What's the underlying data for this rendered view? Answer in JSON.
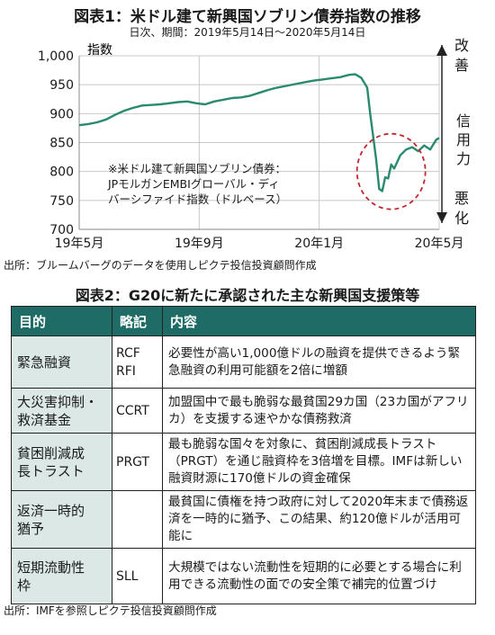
{
  "figure1": {
    "title": "図表1：米ドル建て新興国ソブリン債券指数の推移",
    "subtitle": "日次、期間：2019年5月14日～2020年5月14日",
    "y_unit_label": "指数",
    "note": "※米ドル建て新興国ソブリン債券：\nJPモルガンEMBIグローバル・ディ\nバーシファイド指数（ドルベース）",
    "arrow_top_label": "改善",
    "arrow_middle_label": "信用力",
    "arrow_bottom_label": "悪化",
    "source": "出所：ブルームバーグのデータを使用しピクテ投信投資顧問作成"
  },
  "chart_data": {
    "type": "line",
    "title": "図表1：米ドル建て新興国ソブリン債券指数の推移",
    "subtitle": "日次、期間：2019年5月14日～2020年5月14日",
    "xlabel": "",
    "ylabel": "指数",
    "ylim": [
      700,
      1000
    ],
    "yticks": [
      700,
      750,
      800,
      850,
      900,
      950,
      1000
    ],
    "ytick_labels": [
      "700",
      "750",
      "800",
      "850",
      "900",
      "950",
      "1,000"
    ],
    "xlim": [
      0,
      12
    ],
    "xticks": [
      0,
      4,
      8,
      12
    ],
    "xtick_labels": [
      "19年5月",
      "19年9月",
      "20年1月",
      "20年5月"
    ],
    "grid": true,
    "series_color": "#2a8a6f",
    "highlight_color": "#c0282d",
    "highlight": {
      "x": 10.4,
      "y": 800
    },
    "x": [
      0,
      0.3,
      0.6,
      0.9,
      1.2,
      1.5,
      1.8,
      2.1,
      2.4,
      2.7,
      3.0,
      3.3,
      3.6,
      3.9,
      4.2,
      4.5,
      4.8,
      5.1,
      5.4,
      5.7,
      6.0,
      6.3,
      6.6,
      6.9,
      7.2,
      7.5,
      7.8,
      8.1,
      8.4,
      8.7,
      9.0,
      9.2,
      9.4,
      9.6,
      9.7,
      9.8,
      9.9,
      10.0,
      10.1,
      10.2,
      10.3,
      10.4,
      10.5,
      10.7,
      10.9,
      11.1,
      11.3,
      11.5,
      11.7,
      11.9,
      12.0
    ],
    "values": [
      880,
      882,
      885,
      890,
      898,
      905,
      910,
      914,
      915,
      916,
      918,
      920,
      921,
      918,
      916,
      921,
      924,
      927,
      928,
      931,
      936,
      941,
      945,
      948,
      951,
      954,
      957,
      959,
      961,
      963,
      967,
      968,
      962,
      945,
      900,
      860,
      820,
      770,
      766,
      790,
      788,
      812,
      805,
      828,
      838,
      842,
      835,
      845,
      838,
      855,
      858
    ]
  },
  "figure2": {
    "title": "図表2：G20に新たに承認された主な新興国支援策等",
    "headers": {
      "purpose": "目的",
      "abbr": "略記",
      "content": "内容"
    },
    "rows": [
      {
        "purpose": "緊急融資",
        "abbr": "RCF\nRFI",
        "content": "必要性が高い1,000億ドルの融資を提供できるよう緊急融資の利用可能額を2倍に増額"
      },
      {
        "purpose": "大災害抑制・\n救済基金",
        "abbr": "CCRT",
        "content": "加盟国中で最も脆弱な最貧国29カ国（23カ国がアフリカ）を支援する速やかな債務救済"
      },
      {
        "purpose": "貧困削減成\n長トラスト",
        "abbr": "PRGT",
        "content": "最も脆弱な国々を対象に、貧困削減成長トラスト（PRGT）を通じ融資枠を3倍増を目標。IMFは新しい融資財源に170億ドルの資金確保"
      },
      {
        "purpose": "返済一時的\n猶予",
        "abbr": "",
        "content": "最貧国に債権を持つ政府に対して2020年末まで債務返済を一時的に猶予、この結果、約120億ドルが活用可能に"
      },
      {
        "purpose": "短期流動性\n枠",
        "abbr": "SLL",
        "content": "大規模ではない流動性を短期的に必要とする場合に利用できる流動性の面での安全策で補完的位置づけ"
      }
    ],
    "source": "出所：IMFを参照しピクテ投信投資顧問作成"
  }
}
